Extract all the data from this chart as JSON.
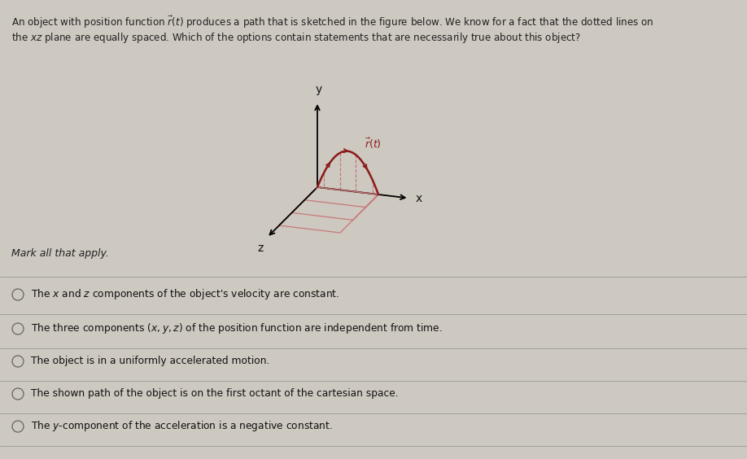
{
  "bg_color": "#cdc8c0",
  "question_text_line1": "An object with position function $\\vec{r}(t)$ produces a path that is sketched in the figure below. We know for a fact that the dotted lines on",
  "question_text_line2": "the $xz$ plane are equally spaced. Which of the options contain statements that are necessarily true about this object?",
  "mark_all_text": "Mark all that apply.",
  "options": [
    "The $x$ and $z$ components of the object's velocity are constant.",
    "The three components $(x, y, z)$ of the position function are independent from time.",
    "The object is in a uniformly accelerated motion.",
    "The shown path of the object is on the first octant of the cartesian space.",
    "The $y$-component of the acceleration is a negative constant."
  ],
  "curve_color": "#8b1a1a",
  "projection_color": "#c87070",
  "axis_color": "#111111",
  "text_color": "#222222",
  "option_text_color": "#111111",
  "line_color": "#999999"
}
